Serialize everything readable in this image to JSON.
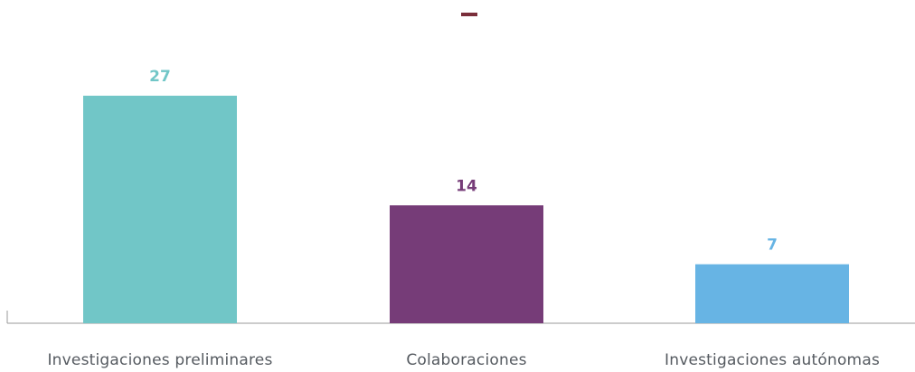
{
  "chart_data": {
    "type": "bar",
    "title": "–",
    "categories": [
      "Investigaciones preliminares",
      "Colaboraciones",
      "Investigaciones autónomas"
    ],
    "values": [
      27,
      14,
      7
    ],
    "colors": [
      "#71c6c7",
      "#763c78",
      "#67b4e4"
    ],
    "ylim": [
      0,
      30
    ],
    "grid": false,
    "legend": "none",
    "xlabel": "",
    "ylabel": ""
  }
}
